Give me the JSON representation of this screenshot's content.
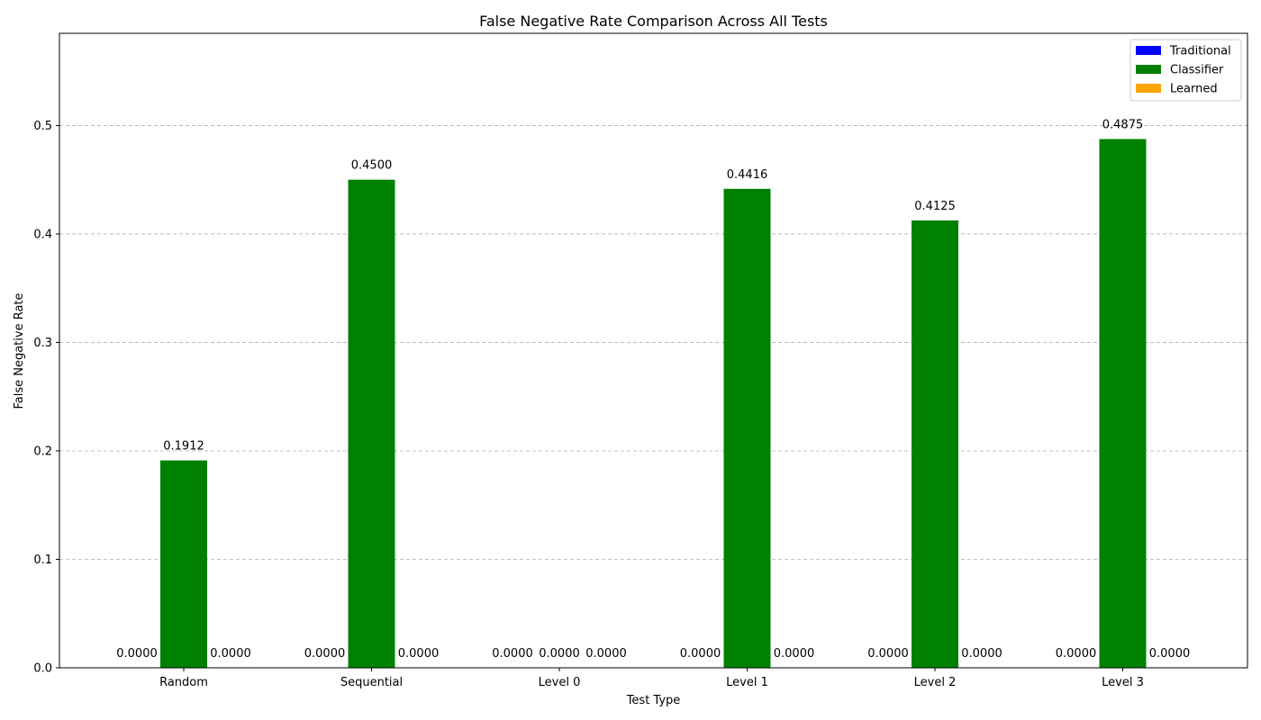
{
  "chart_data": {
    "type": "bar",
    "title": "False Negative Rate Comparison Across All Tests",
    "xlabel": "Test Type",
    "ylabel": "False Negative Rate",
    "categories": [
      "Random",
      "Sequential",
      "Level 0",
      "Level 1",
      "Level 2",
      "Level 3"
    ],
    "series": [
      {
        "name": "Traditional",
        "color": "#0000ff",
        "values": [
          0.0,
          0.0,
          0.0,
          0.0,
          0.0,
          0.0
        ],
        "labels": [
          "0.0000",
          "0.0000",
          "0.0000",
          "0.0000",
          "0.0000",
          "0.0000"
        ]
      },
      {
        "name": "Classifier",
        "color": "#008000",
        "values": [
          0.1912,
          0.45,
          0.0,
          0.4416,
          0.4125,
          0.4875
        ],
        "labels": [
          "0.1912",
          "0.4500",
          "0.0000",
          "0.4416",
          "0.4125",
          "0.4875"
        ]
      },
      {
        "name": "Learned",
        "color": "#ffa500",
        "values": [
          0.0,
          0.0,
          0.0,
          0.0,
          0.0,
          0.0
        ],
        "labels": [
          "0.0000",
          "0.0000",
          "0.0000",
          "0.0000",
          "0.0000",
          "0.0000"
        ]
      }
    ],
    "ylim": [
      0,
      0.585
    ],
    "yticks": [
      "0.0",
      "0.1",
      "0.2",
      "0.3",
      "0.4",
      "0.5"
    ],
    "grid": "y-dashed",
    "legend_position": "top-right"
  }
}
